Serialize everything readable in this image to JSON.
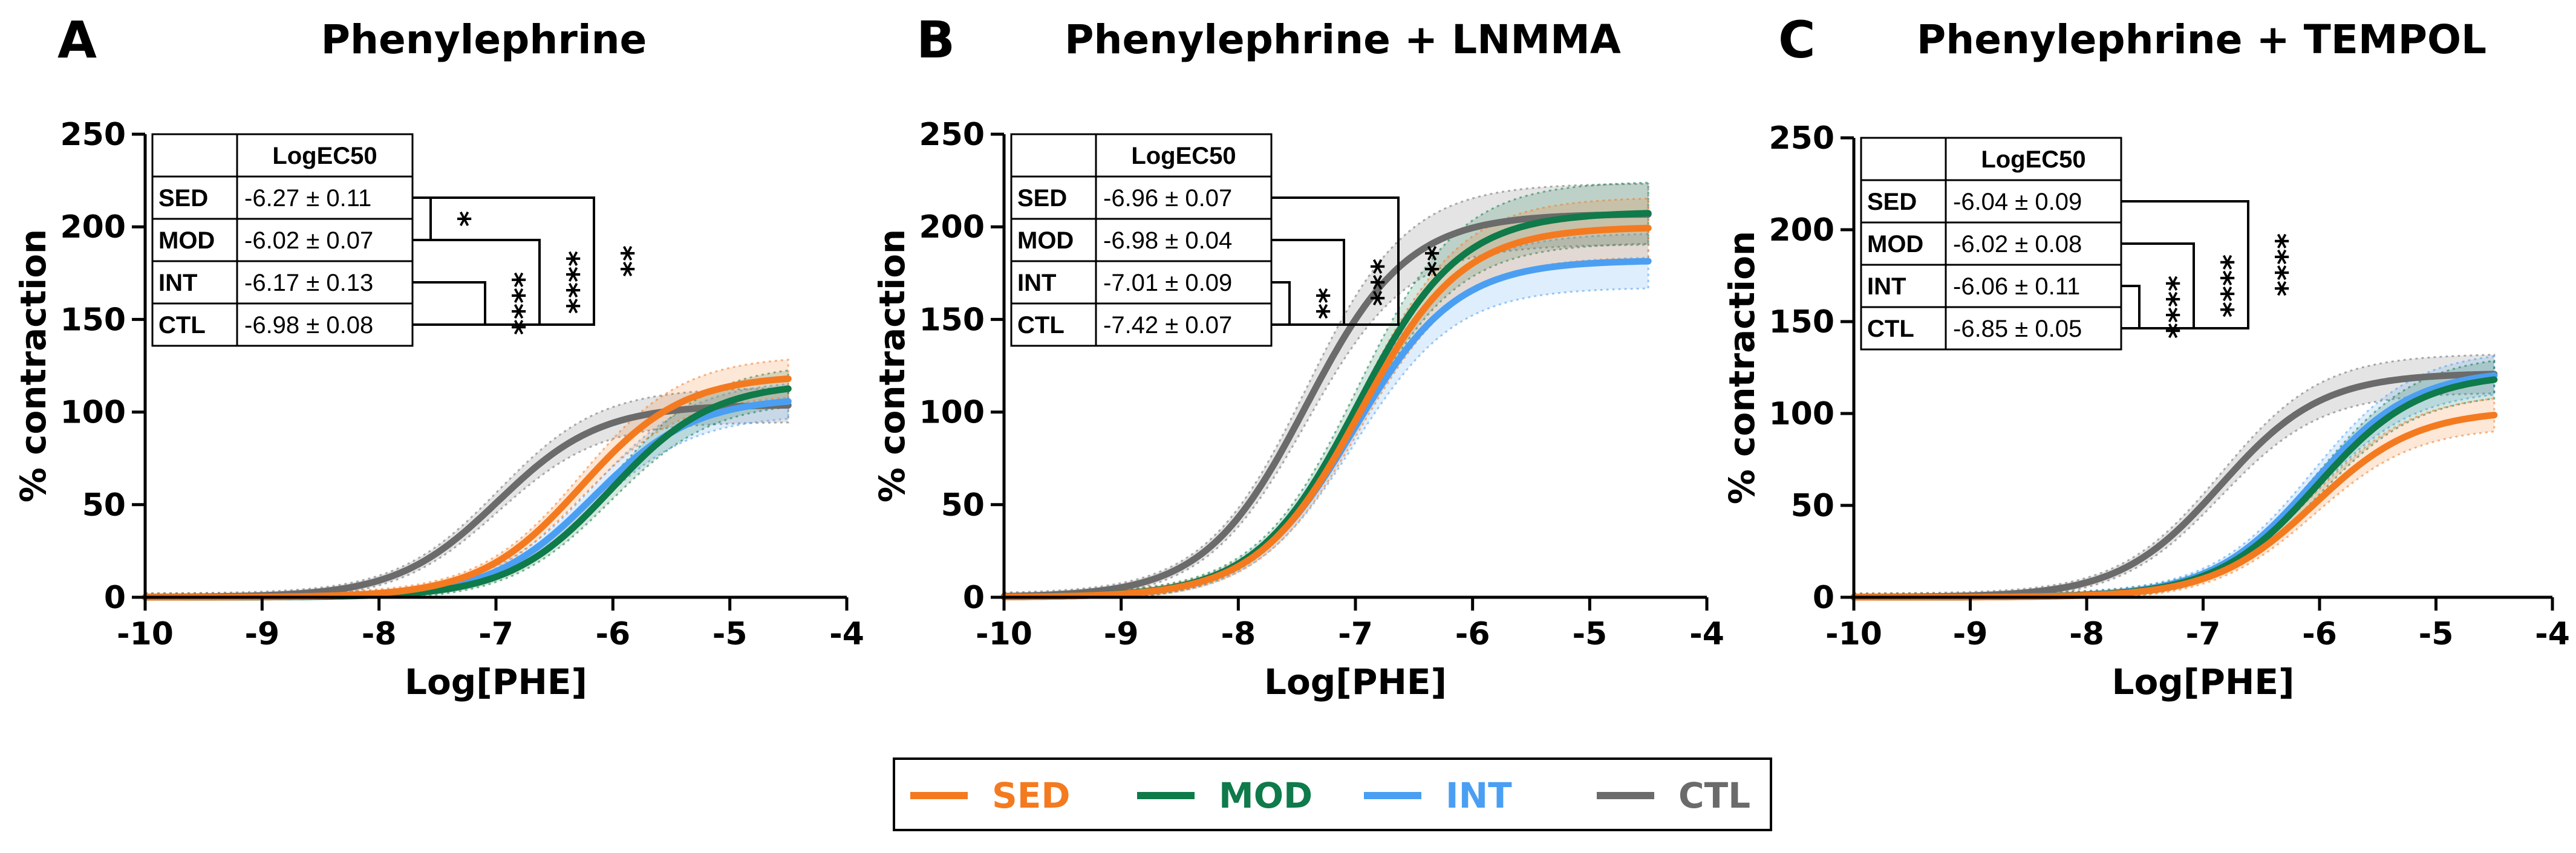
{
  "colors": {
    "SED": "#f47a20",
    "MOD": "#0f7a4a",
    "INT": "#4b9ff2",
    "CTL": "#6b6b6b"
  },
  "legend": [
    {
      "key": "SED",
      "label": "SED"
    },
    {
      "key": "MOD",
      "label": "MOD"
    },
    {
      "key": "INT",
      "label": "INT"
    },
    {
      "key": "CTL",
      "label": "CTL"
    }
  ],
  "chart_data": [
    {
      "type": "line",
      "panel": "A",
      "title": "Phenylephrine",
      "xlabel": "Log[PHE]",
      "ylabel": "% contraction",
      "xlim": [
        -10,
        -4
      ],
      "ylim": [
        0,
        250
      ],
      "xticks": [
        -10,
        -9,
        -8,
        -7,
        -6,
        -5,
        -4
      ],
      "yticks": [
        0,
        50,
        100,
        150,
        200,
        250
      ],
      "x_range": [
        -10,
        -4.5
      ],
      "table": {
        "header": "LogEC50",
        "rows": [
          {
            "group": "SED",
            "value": "-6.27 ± 0.11"
          },
          {
            "group": "MOD",
            "value": "-6.02 ± 0.07"
          },
          {
            "group": "INT",
            "value": "-6.17 ± 0.13"
          },
          {
            "group": "CTL",
            "value": "-6.98 ± 0.08"
          }
        ]
      },
      "significance": [
        {
          "between": [
            "SED",
            "MOD"
          ],
          "label": "*"
        },
        {
          "between": [
            "MOD",
            "CTL"
          ],
          "label": "****"
        },
        {
          "between": [
            "INT",
            "CTL"
          ],
          "label": "****"
        },
        {
          "between": [
            "SED",
            "CTL"
          ],
          "label": "**"
        }
      ],
      "series": [
        {
          "name": "SED",
          "logEC50": -6.27,
          "top": 120,
          "hill": 1.0
        },
        {
          "name": "MOD",
          "logEC50": -6.02,
          "top": 116,
          "hill": 1.0
        },
        {
          "name": "INT",
          "logEC50": -6.17,
          "top": 108,
          "hill": 1.0
        },
        {
          "name": "CTL",
          "logEC50": -6.98,
          "top": 104,
          "hill": 1.0
        }
      ]
    },
    {
      "type": "line",
      "panel": "B",
      "title": "Phenylephrine + LNMMA",
      "xlabel": "Log[PHE]",
      "ylabel": "% contraction",
      "xlim": [
        -10,
        -4
      ],
      "ylim": [
        0,
        250
      ],
      "xticks": [
        -10,
        -9,
        -8,
        -7,
        -6,
        -5,
        -4
      ],
      "yticks": [
        0,
        50,
        100,
        150,
        200,
        250
      ],
      "x_range": [
        -10,
        -4.5
      ],
      "table": {
        "header": "LogEC50",
        "rows": [
          {
            "group": "SED",
            "value": "-6.96 ± 0.07"
          },
          {
            "group": "MOD",
            "value": "-6.98 ± 0.04"
          },
          {
            "group": "INT",
            "value": "-7.01 ± 0.09"
          },
          {
            "group": "CTL",
            "value": "-7.42 ± 0.07"
          }
        ]
      },
      "significance": [
        {
          "between": [
            "INT",
            "CTL"
          ],
          "label": "**"
        },
        {
          "between": [
            "MOD",
            "CTL"
          ],
          "label": "***"
        },
        {
          "between": [
            "SED",
            "CTL"
          ],
          "label": "**"
        }
      ],
      "series": [
        {
          "name": "SED",
          "logEC50": -6.96,
          "top": 200,
          "hill": 1.0
        },
        {
          "name": "MOD",
          "logEC50": -6.98,
          "top": 208,
          "hill": 1.0
        },
        {
          "name": "INT",
          "logEC50": -7.01,
          "top": 182,
          "hill": 1.0
        },
        {
          "name": "CTL",
          "logEC50": -7.42,
          "top": 207,
          "hill": 1.0
        }
      ]
    },
    {
      "type": "line",
      "panel": "C",
      "title": "Phenylephrine + TEMPOL",
      "xlabel": "Log[PHE]",
      "ylabel": "% contraction",
      "xlim": [
        -10,
        -4
      ],
      "ylim": [
        0,
        250
      ],
      "xticks": [
        -10,
        -9,
        -8,
        -7,
        -6,
        -5,
        -4
      ],
      "yticks": [
        0,
        50,
        100,
        150,
        200,
        250
      ],
      "x_range": [
        -10,
        -4.5
      ],
      "table": {
        "header": "LogEC50",
        "rows": [
          {
            "group": "SED",
            "value": "-6.04 ± 0.09"
          },
          {
            "group": "MOD",
            "value": "-6.02 ± 0.08"
          },
          {
            "group": "INT",
            "value": "-6.06 ± 0.11"
          },
          {
            "group": "CTL",
            "value": "-6.85 ± 0.05"
          }
        ]
      },
      "significance": [
        {
          "between": [
            "INT",
            "CTL"
          ],
          "label": "****"
        },
        {
          "between": [
            "MOD",
            "CTL"
          ],
          "label": "****"
        },
        {
          "between": [
            "SED",
            "CTL"
          ],
          "label": "****"
        }
      ],
      "series": [
        {
          "name": "SED",
          "logEC50": -6.04,
          "top": 102,
          "hill": 1.0
        },
        {
          "name": "MOD",
          "logEC50": -6.02,
          "top": 122,
          "hill": 1.0
        },
        {
          "name": "INT",
          "logEC50": -6.06,
          "top": 124,
          "hill": 1.0
        },
        {
          "name": "CTL",
          "logEC50": -6.85,
          "top": 122,
          "hill": 1.0
        }
      ]
    }
  ]
}
